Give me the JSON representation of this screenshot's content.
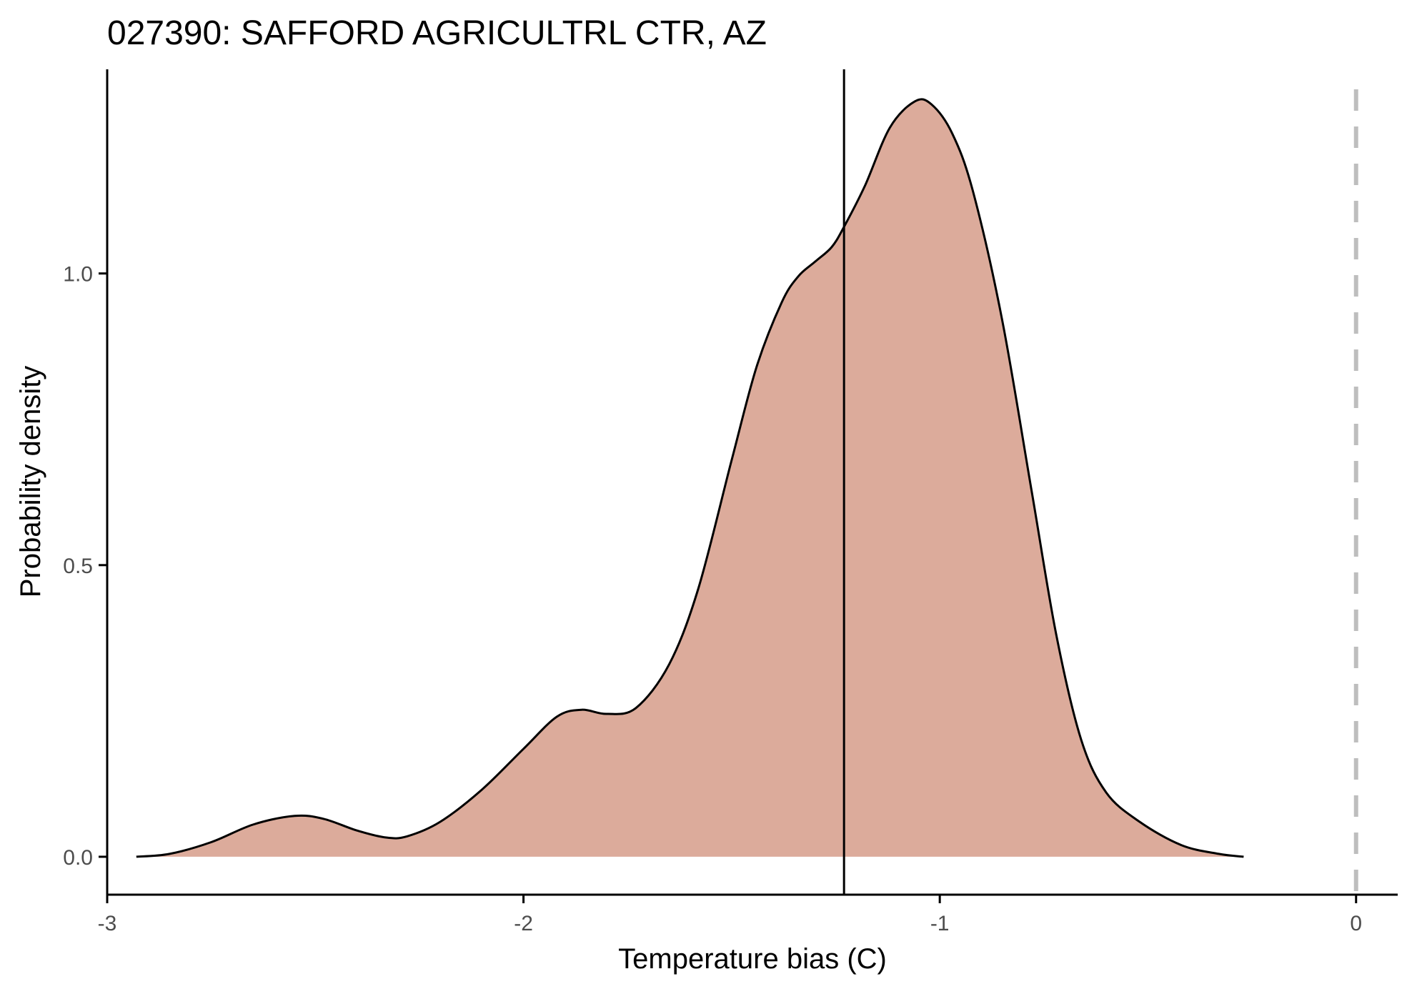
{
  "chart_data": {
    "type": "area",
    "title": "027390: SAFFORD AGRICULTRL CTR, AZ",
    "xlabel": "Temperature bias (C)",
    "ylabel": "Probability density",
    "xlim": [
      -3.0,
      0.1
    ],
    "ylim": [
      -0.065,
      1.35
    ],
    "x_ticks": [
      -3,
      -2,
      -1,
      0
    ],
    "x_tick_labels": [
      "-3",
      "-2",
      "-1",
      "0"
    ],
    "y_ticks": [
      0.0,
      0.5,
      1.0
    ],
    "y_tick_labels": [
      "0.0",
      "0.5",
      "1.0"
    ],
    "grid": false,
    "fill_color": "#dcab9b",
    "line_color": "#000000",
    "zero_line_color": "#bebebe",
    "series": [
      {
        "x": [
          -2.93,
          -2.85,
          -2.75,
          -2.65,
          -2.55,
          -2.48,
          -2.4,
          -2.33,
          -2.28,
          -2.2,
          -2.1,
          -2.0,
          -1.92,
          -1.86,
          -1.8,
          -1.73,
          -1.65,
          -1.58,
          -1.5,
          -1.44,
          -1.38,
          -1.34,
          -1.3,
          -1.26,
          -1.23,
          -1.18,
          -1.12,
          -1.06,
          -1.02,
          -0.97,
          -0.92,
          -0.85,
          -0.78,
          -0.72,
          -0.66,
          -0.6,
          -0.52,
          -0.42,
          -0.33,
          -0.27
        ],
        "y": [
          0.0,
          0.005,
          0.025,
          0.055,
          0.07,
          0.065,
          0.045,
          0.033,
          0.035,
          0.06,
          0.115,
          0.185,
          0.24,
          0.252,
          0.245,
          0.255,
          0.33,
          0.46,
          0.68,
          0.84,
          0.95,
          0.995,
          1.02,
          1.045,
          1.08,
          1.15,
          1.25,
          1.295,
          1.29,
          1.24,
          1.14,
          0.92,
          0.63,
          0.38,
          0.2,
          0.11,
          0.06,
          0.02,
          0.005,
          0.0
        ]
      }
    ],
    "annotations": [
      {
        "type": "vline",
        "x": -1.23,
        "style": "solid",
        "color": "#000000"
      },
      {
        "type": "vline",
        "x": 0.0,
        "style": "dashed",
        "color": "#bebebe"
      }
    ]
  }
}
